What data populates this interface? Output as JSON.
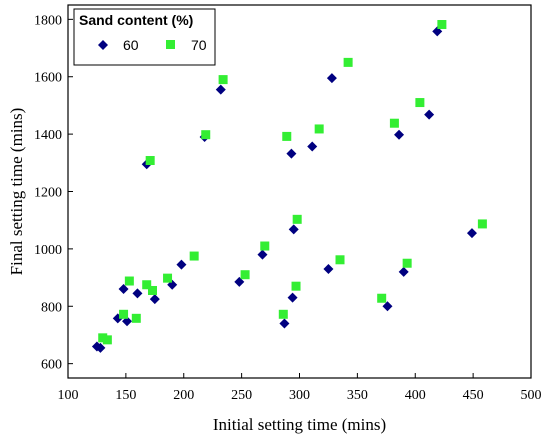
{
  "chart_data": {
    "type": "scatter",
    "title": "",
    "xlabel": "Initial setting time (mins)",
    "ylabel": "Final setting time (mins)",
    "xlim": [
      100,
      500
    ],
    "ylim": [
      550,
      1850
    ],
    "xticks": [
      100,
      150,
      200,
      250,
      300,
      350,
      400,
      450,
      500
    ],
    "yticks": [
      600,
      800,
      1000,
      1200,
      1400,
      1600,
      1800
    ],
    "grid": false,
    "legend": {
      "title": "Sand content (%)",
      "placement": "top-left"
    },
    "series": [
      {
        "name": "60",
        "marker": "diamond",
        "color": "#000080",
        "points": [
          [
            125,
            660
          ],
          [
            128,
            655
          ],
          [
            143,
            758
          ],
          [
            148,
            860
          ],
          [
            151,
            748
          ],
          [
            160,
            845
          ],
          [
            168,
            1295
          ],
          [
            175,
            825
          ],
          [
            190,
            875
          ],
          [
            198,
            945
          ],
          [
            218,
            1390
          ],
          [
            232,
            1555
          ],
          [
            248,
            885
          ],
          [
            268,
            980
          ],
          [
            287,
            740
          ],
          [
            294,
            830
          ],
          [
            295,
            1068
          ],
          [
            293,
            1332
          ],
          [
            311,
            1357
          ],
          [
            325,
            930
          ],
          [
            328,
            1595
          ],
          [
            376,
            800
          ],
          [
            386,
            1398
          ],
          [
            390,
            920
          ],
          [
            412,
            1468
          ],
          [
            419,
            1758
          ],
          [
            449,
            1055
          ]
        ]
      },
      {
        "name": "70",
        "marker": "square",
        "color": "#33ee33",
        "points": [
          [
            130,
            690
          ],
          [
            134,
            683
          ],
          [
            148,
            772
          ],
          [
            153,
            888
          ],
          [
            159,
            758
          ],
          [
            168,
            875
          ],
          [
            171,
            1308
          ],
          [
            173,
            855
          ],
          [
            186,
            898
          ],
          [
            209,
            975
          ],
          [
            219,
            1398
          ],
          [
            234,
            1590
          ],
          [
            253,
            910
          ],
          [
            270,
            1010
          ],
          [
            286,
            772
          ],
          [
            289,
            1392
          ],
          [
            297,
            870
          ],
          [
            298,
            1103
          ],
          [
            317,
            1418
          ],
          [
            335,
            962
          ],
          [
            342,
            1650
          ],
          [
            371,
            828
          ],
          [
            382,
            1438
          ],
          [
            393,
            950
          ],
          [
            404,
            1510
          ],
          [
            423,
            1782
          ],
          [
            458,
            1087
          ]
        ]
      }
    ]
  }
}
